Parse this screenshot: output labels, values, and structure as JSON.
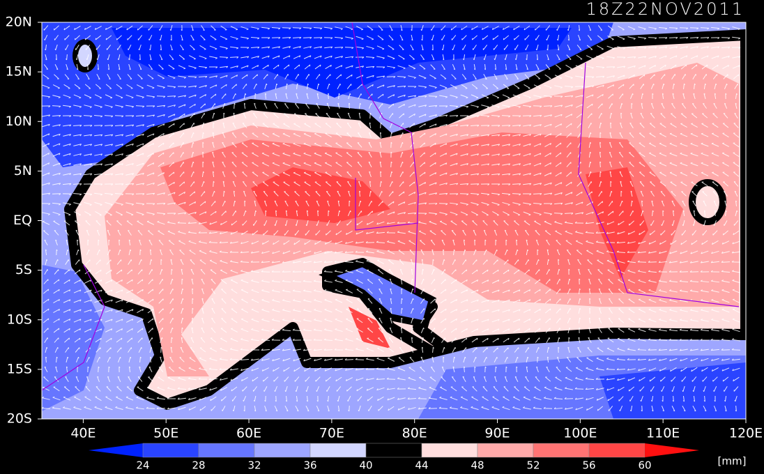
{
  "title": "18Z22NOV2011",
  "lat_labels": [
    "20N",
    "15N",
    "10N",
    "5N",
    "EQ",
    "5S",
    "10S",
    "15S",
    "20S"
  ],
  "lon_labels": [
    "40E",
    "50E",
    "60E",
    "70E",
    "80E",
    "90E",
    "100E",
    "110E",
    "120E"
  ],
  "colorbar": {
    "levels": [
      24,
      28,
      32,
      36,
      40,
      44,
      48,
      52,
      56,
      60
    ],
    "colors": [
      "#0022ff",
      "#2a44ff",
      "#6676ff",
      "#9ea6ff",
      "#d2d6ff",
      "#000000",
      "#ffdede",
      "#ffaaaa",
      "#ff7474",
      "#ff4646",
      "#ff1010"
    ],
    "unit": "[mm]"
  }
}
